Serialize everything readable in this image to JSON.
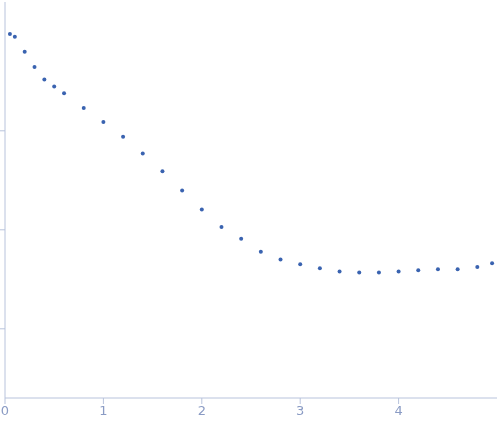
{
  "chart_data": {
    "type": "scatter",
    "x": [
      0.05,
      0.1,
      0.2,
      0.3,
      0.4,
      0.5,
      0.6,
      0.8,
      1.0,
      1.2,
      1.4,
      1.6,
      1.8,
      2.0,
      2.2,
      2.4,
      2.6,
      2.8,
      3.0,
      3.2,
      3.4,
      3.6,
      3.8,
      4.0,
      4.2,
      4.4,
      4.6,
      4.8,
      4.95
    ],
    "values": [
      0.95,
      0.89,
      0.63,
      0.44,
      0.33,
      0.28,
      0.24,
      0.17,
      0.123,
      0.087,
      0.059,
      0.039,
      0.025,
      0.016,
      0.0107,
      0.0081,
      0.006,
      0.005,
      0.0045,
      0.0041,
      0.0038,
      0.0037,
      0.0037,
      0.0038,
      0.0039,
      0.004,
      0.004,
      0.0042,
      0.0046
    ],
    "color": "#3a63b0",
    "marker": "circle",
    "xlim": [
      0,
      5
    ],
    "xticks": [
      0,
      1,
      2,
      3,
      4
    ],
    "ylim": [
      0.0002,
      2
    ],
    "yticks": [
      0.001,
      0.01,
      0.1
    ],
    "log": "y",
    "grid": false,
    "tick_labels": "x"
  }
}
